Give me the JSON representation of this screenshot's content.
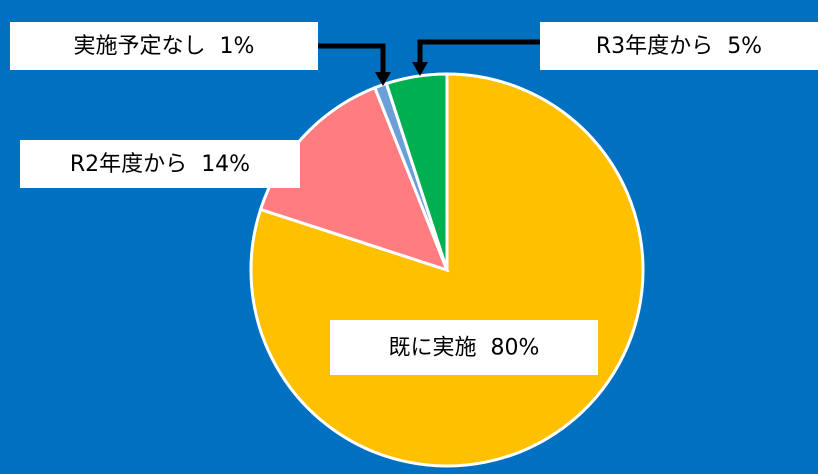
{
  "chart_data": {
    "type": "pie",
    "categories": [
      "既に実施",
      "R2年度から",
      "実施予定なし",
      "R3年度から"
    ],
    "values": [
      80,
      14,
      1,
      5
    ],
    "value_labels": [
      "80%",
      "14%",
      "1%",
      "5%"
    ],
    "colors": [
      "#ffc000",
      "#ff7c80",
      "#6a9fd8",
      "#00b050"
    ]
  }
}
